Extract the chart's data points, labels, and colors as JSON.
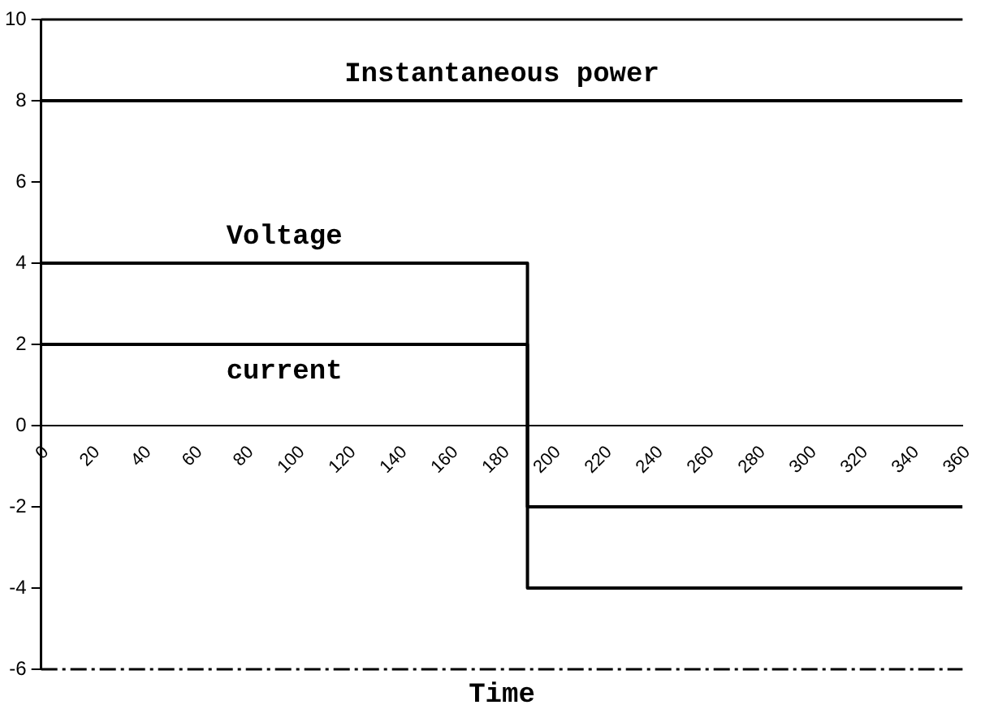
{
  "chart_data": {
    "type": "line",
    "xlabel": "Time",
    "xlim": [
      0,
      360
    ],
    "xticks": [
      0,
      20,
      40,
      60,
      80,
      100,
      120,
      140,
      160,
      180,
      200,
      220,
      240,
      260,
      280,
      300,
      320,
      340,
      360
    ],
    "ylim": [
      -6,
      10
    ],
    "yticks": [
      -6,
      -4,
      -2,
      0,
      2,
      4,
      6,
      8,
      10
    ],
    "grid": false,
    "legend": false,
    "marker": "none",
    "line_style": "solid",
    "series": [
      {
        "name": "Instantaneous power",
        "color": "#000000",
        "x": [
          0,
          360
        ],
        "values": [
          8,
          8
        ]
      },
      {
        "name": "Voltage",
        "color": "#000000",
        "x": [
          0,
          190,
          190,
          360
        ],
        "values": [
          4,
          4,
          -4,
          -4
        ]
      },
      {
        "name": "current",
        "color": "#000000",
        "x": [
          0,
          190,
          190,
          360
        ],
        "values": [
          2,
          2,
          -2,
          -2
        ]
      }
    ]
  }
}
